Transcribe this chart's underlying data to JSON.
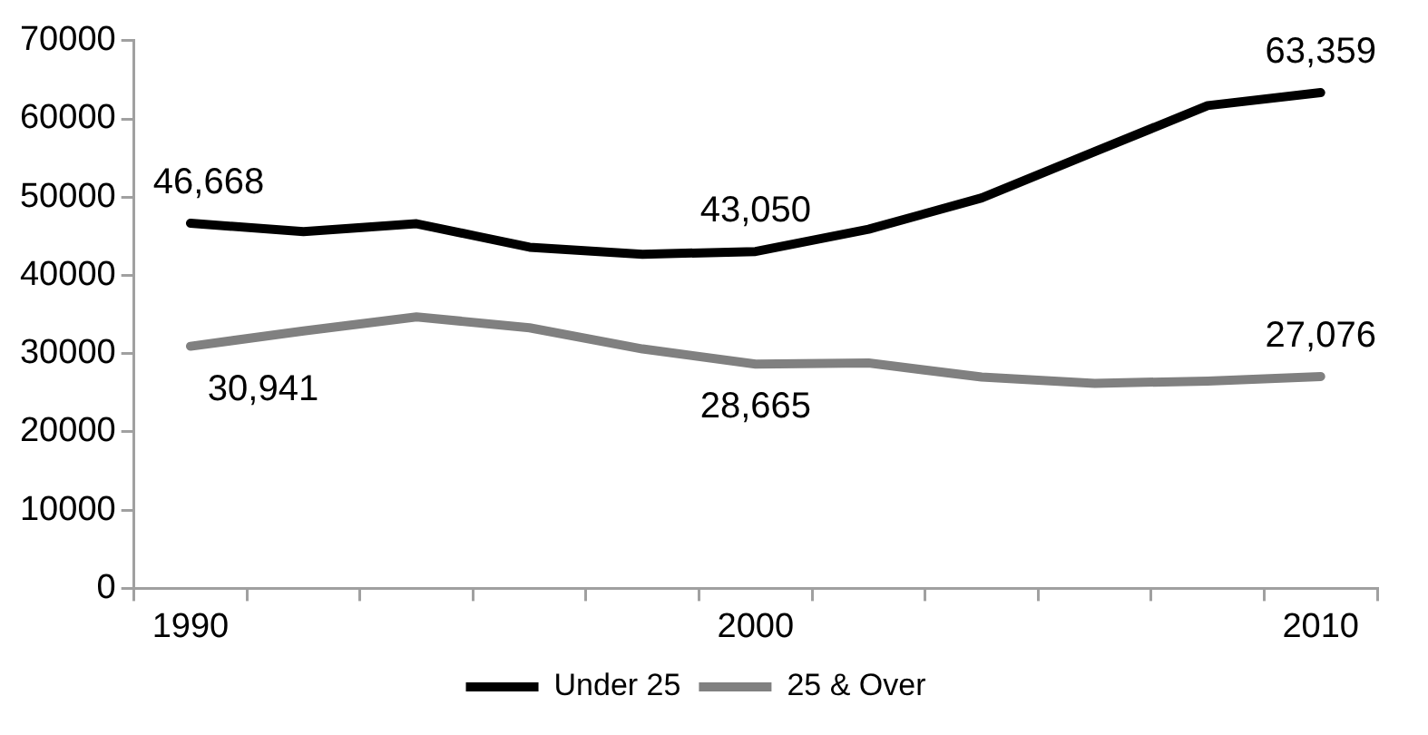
{
  "chart_data": {
    "type": "line",
    "categories": [
      "1990",
      null,
      null,
      null,
      null,
      "2000",
      null,
      null,
      null,
      null,
      "2010"
    ],
    "series": [
      {
        "name": "Under 25",
        "color": "#000000",
        "values": [
          46668,
          45600,
          46600,
          43600,
          42700,
          43050,
          45900,
          49900,
          55800,
          61700,
          63359
        ],
        "value_labels": [
          "46,668",
          null,
          null,
          null,
          null,
          "43,050",
          null,
          null,
          null,
          null,
          "63,359"
        ]
      },
      {
        "name": "25 & Over",
        "color": "#808080",
        "values": [
          30941,
          32900,
          34700,
          33300,
          30600,
          28665,
          28800,
          27000,
          26200,
          26500,
          27076
        ],
        "value_labels": [
          "30,941",
          null,
          null,
          null,
          null,
          "28,665",
          null,
          null,
          null,
          null,
          "27,076"
        ]
      }
    ],
    "ylim": [
      0,
      70000
    ],
    "yticks": [
      0,
      10000,
      20000,
      30000,
      40000,
      50000,
      60000,
      70000
    ],
    "grid": false,
    "legend": "bottom",
    "marker": "none",
    "line_style": "solid"
  }
}
